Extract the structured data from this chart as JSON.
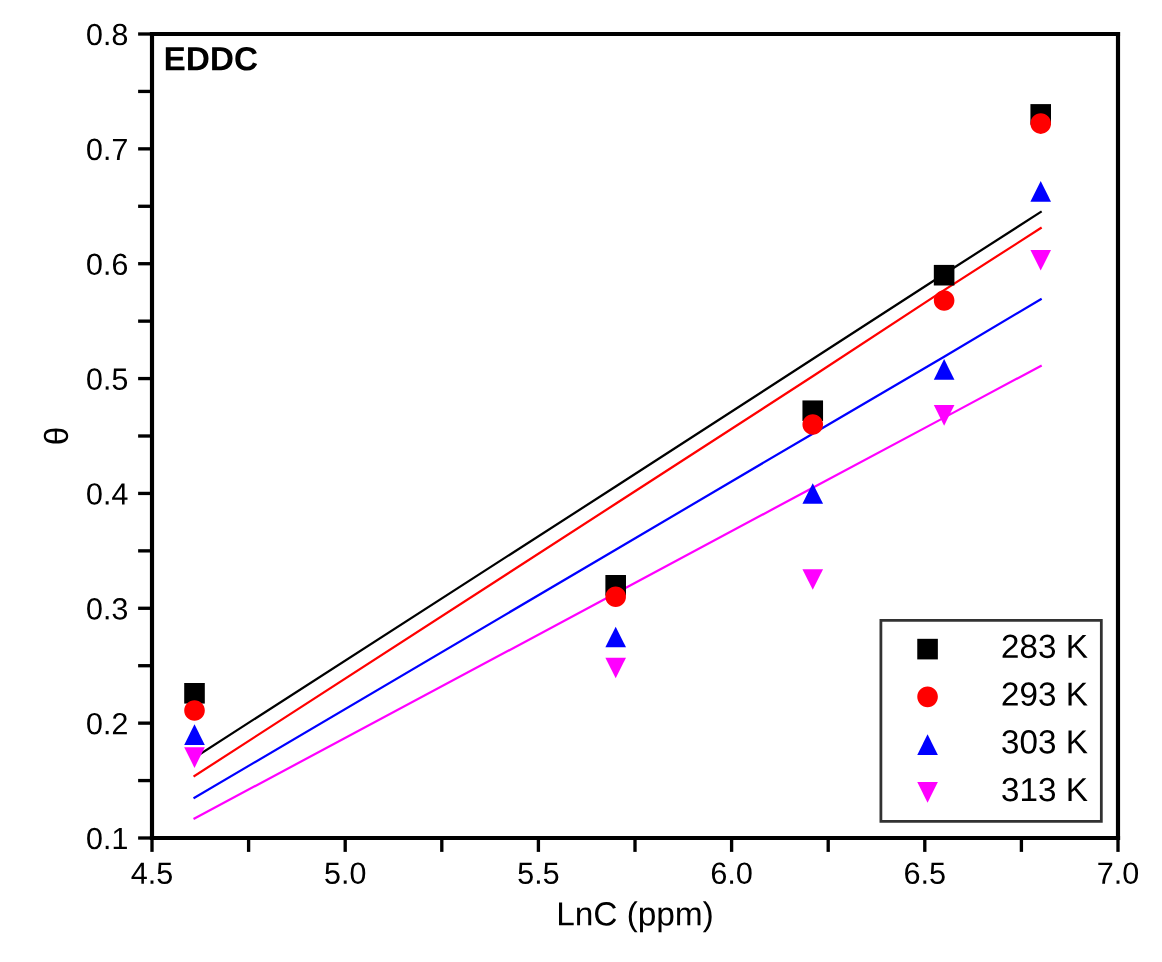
{
  "chart_data": {
    "type": "scatter",
    "title": "EDDC",
    "xlabel": "LnC (ppm)",
    "ylabel": "θ",
    "x": [
      4.61,
      5.7,
      6.21,
      6.55,
      6.8
    ],
    "series": [
      {
        "name": "283 K",
        "color": "#000000",
        "marker": "square",
        "values": [
          0.226,
          0.32,
          0.472,
          0.59,
          0.73
        ]
      },
      {
        "name": "293 K",
        "color": "#ff0000",
        "marker": "circle",
        "values": [
          0.211,
          0.31,
          0.46,
          0.568,
          0.722
        ]
      },
      {
        "name": "303 K",
        "color": "#0000ff",
        "marker": "triangle",
        "values": [
          0.19,
          0.275,
          0.4,
          0.508,
          0.663
        ]
      },
      {
        "name": "313 K",
        "color": "#ff00ff",
        "marker": "triangle_down",
        "values": [
          0.17,
          0.248,
          0.325,
          0.468,
          0.603
        ]
      },
      {
        "type": "line",
        "color": "#000000",
        "values": [
          0.17,
          0.406,
          0.517,
          0.591,
          0.645
        ]
      },
      {
        "type": "line",
        "color": "#ff0000",
        "values": [
          0.154,
          0.391,
          0.502,
          0.577,
          0.631
        ]
      },
      {
        "type": "line",
        "color": "#0000ff",
        "values": [
          0.135,
          0.351,
          0.452,
          0.519,
          0.569
        ]
      },
      {
        "type": "line",
        "color": "#ff00ff",
        "values": [
          0.117,
          0.313,
          0.405,
          0.466,
          0.511
        ]
      }
    ],
    "xlim": [
      4.5,
      7.0
    ],
    "xticks": [
      4.5,
      {
        "value": 4.75,
        "label": null
      },
      {
        "value": 5,
        "label": "5.0"
      },
      {
        "value": 5.25,
        "label": null
      },
      5.5,
      {
        "value": 5.75,
        "label": null
      },
      {
        "value": 6,
        "label": "6.0"
      },
      {
        "value": 6.25,
        "label": null
      },
      6.5,
      {
        "value": 6.75,
        "label": null
      },
      {
        "value": 7,
        "label": "7.0"
      }
    ],
    "ylim": [
      0.1,
      0.8
    ],
    "yticks": [
      0.1,
      {
        "value": 0.15,
        "label": null
      },
      0.2,
      {
        "value": 0.25,
        "label": null
      },
      0.3,
      {
        "value": 0.35,
        "label": null
      },
      0.4,
      {
        "value": 0.45,
        "label": null
      },
      0.5,
      {
        "value": 0.55,
        "label": null
      },
      0.6,
      {
        "value": 0.65,
        "label": null
      },
      0.7,
      {
        "value": 0.75,
        "label": null
      },
      0.8
    ],
    "legend": "bottom right",
    "grid": false
  }
}
